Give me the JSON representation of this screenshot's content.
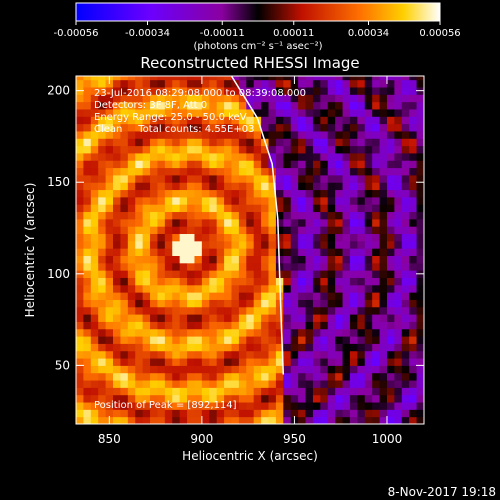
{
  "chart_data": {
    "type": "heatmap",
    "title": "Reconstructed RHESSI Image",
    "xlabel": "Heliocentric X (arcsec)",
    "ylabel": "Heliocentric Y (arcsec)",
    "xlim": [
      832,
      1020
    ],
    "ylim": [
      18,
      208
    ],
    "x_ticks": [
      850,
      900,
      950,
      1000
    ],
    "y_ticks": [
      50,
      100,
      150,
      200
    ],
    "colorbar": {
      "ticks": [
        "-0.00056",
        "-0.00034",
        "-0.00011",
        "0.00011",
        "0.00034",
        "0.00056"
      ],
      "range": [
        -0.00056,
        0.00056
      ],
      "unit_label": "(photons cm⁻² s⁻¹ asec⁻²)"
    },
    "annotations": [
      "23-Jul-2016 08:29:08.000 to 08:39:08.000",
      "Detectors: 3F 8F, Att 0",
      "Energy Range: 25.0 - 50.0 keV",
      "Clean     Total counts: 4.55E+03"
    ],
    "peak_label": "Position of Peak = [892,114]",
    "peak": [
      892,
      114
    ],
    "limb_curve": [
      [
        916,
        208
      ],
      [
        930,
        185
      ],
      [
        938,
        160
      ],
      [
        941,
        130
      ],
      [
        942,
        100
      ],
      [
        943,
        70
      ],
      [
        944,
        45
      ]
    ],
    "grid": false,
    "legend": "colorbar-top"
  },
  "footer": {
    "timestamp": "8-Nov-2017 19:18"
  },
  "colors": {
    "background": "#000000",
    "axes": "#ffffff",
    "limb": "#ffffff"
  }
}
